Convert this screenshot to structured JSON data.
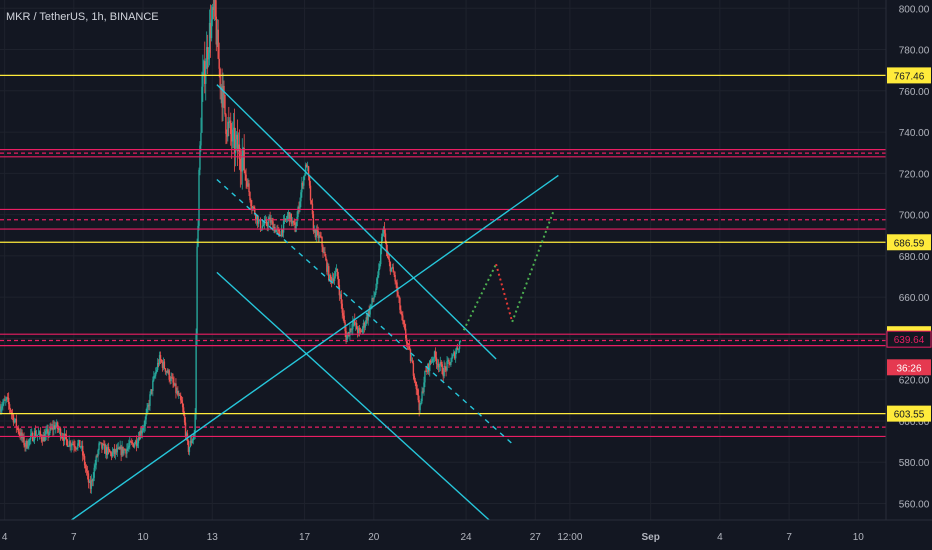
{
  "header": {
    "symbol": "MKR / TetherUS, 1h, BINANCE"
  },
  "colors": {
    "background": "#131722",
    "axis_text": "#b2b5be",
    "yellow_level": "#ffeb3b",
    "red_level": "#e91e63",
    "trendline": "#26c6da",
    "projection_up": "#4caf50",
    "projection_down": "#e53935",
    "candle_up": "#26a69a",
    "candle_down": "#ef5350",
    "countdown_bg": "#e53950"
  },
  "chart_data": {
    "type": "candlestick",
    "title": "MKR / TetherUS, 1h, BINANCE",
    "x_axis": {
      "tick_labels": [
        "4",
        "7",
        "10",
        "13",
        "17",
        "20",
        "24",
        "27",
        "12:00",
        "Sep",
        "4",
        "7",
        "10"
      ],
      "tick_values_day_index": [
        4,
        7,
        10,
        13,
        17,
        20,
        24,
        27,
        28.5,
        32,
        35,
        38,
        41
      ],
      "range_day_index": [
        3.8,
        42.2
      ]
    },
    "y_axis": {
      "tick_labels": [
        "560.00",
        "580.00",
        "600.00",
        "620.00",
        "640.00",
        "660.00",
        "680.00",
        "700.00",
        "720.00",
        "740.00",
        "760.00",
        "780.00",
        "800.00"
      ],
      "tick_values": [
        560,
        580,
        600,
        620,
        640,
        660,
        680,
        700,
        720,
        740,
        760,
        780,
        800
      ],
      "range": [
        552,
        804
      ],
      "position": "right"
    },
    "price_labels": [
      {
        "value": 767.46,
        "label": "767.46",
        "style": "yellow"
      },
      {
        "value": 686.59,
        "label": "686.59",
        "style": "yellow"
      },
      {
        "value": 642.04,
        "label": "642.04",
        "style": "yellow"
      },
      {
        "value": 639.64,
        "label": "639.64",
        "style": "red"
      },
      {
        "value": 603.55,
        "label": "603.55",
        "style": "yellow"
      }
    ],
    "countdown": {
      "label": "36:26",
      "value": 626
    },
    "horizontal_levels": [
      {
        "price": 767.46,
        "color": "yellow",
        "style": "solid"
      },
      {
        "price": 731.5,
        "color": "red",
        "style": "solid"
      },
      {
        "price": 729.8,
        "color": "red",
        "style": "dashed"
      },
      {
        "price": 728.0,
        "color": "red",
        "style": "solid"
      },
      {
        "price": 702.5,
        "color": "red",
        "style": "solid"
      },
      {
        "price": 697.5,
        "color": "red",
        "style": "dashed"
      },
      {
        "price": 693.0,
        "color": "red",
        "style": "solid"
      },
      {
        "price": 686.59,
        "color": "yellow",
        "style": "solid"
      },
      {
        "price": 642.04,
        "color": "red",
        "style": "solid"
      },
      {
        "price": 639.0,
        "color": "red",
        "style": "dashed"
      },
      {
        "price": 636.5,
        "color": "red",
        "style": "solid"
      },
      {
        "price": 603.55,
        "color": "yellow",
        "style": "solid"
      },
      {
        "price": 597.0,
        "color": "red",
        "style": "dashed"
      },
      {
        "price": 592.5,
        "color": "red",
        "style": "solid"
      }
    ],
    "trendlines": [
      {
        "name": "upper-channel",
        "from": [
          13.2,
          763
        ],
        "to": [
          25.3,
          630
        ],
        "style": "solid"
      },
      {
        "name": "channel-mid",
        "from": [
          13.2,
          717
        ],
        "to": [
          26.1,
          588
        ],
        "style": "dashed"
      },
      {
        "name": "lower-channel",
        "from": [
          13.2,
          672
        ],
        "to": [
          25.0,
          552
        ],
        "style": "solid"
      },
      {
        "name": "rising-support",
        "from": [
          6.9,
          552
        ],
        "to": [
          28.0,
          719
        ],
        "style": "solid"
      }
    ],
    "projections": [
      {
        "color": "green",
        "points": [
          [
            23.9,
            644
          ],
          [
            25.3,
            676
          ]
        ]
      },
      {
        "color": "red",
        "points": [
          [
            25.3,
            676
          ],
          [
            26.0,
            648
          ]
        ]
      },
      {
        "color": "green",
        "points": [
          [
            26.0,
            648
          ],
          [
            27.8,
            702
          ]
        ]
      }
    ],
    "candles": {
      "start_day_index": 3.8,
      "hours_per_candle": 1,
      "closes_hourly_anchor": [
        [
          3.8,
          607
        ],
        [
          4.1,
          610
        ],
        [
          4.5,
          598
        ],
        [
          4.9,
          588
        ],
        [
          5.3,
          594
        ],
        [
          5.7,
          592
        ],
        [
          6.2,
          598
        ],
        [
          6.7,
          590
        ],
        [
          7.3,
          588
        ],
        [
          7.7,
          567
        ],
        [
          8.1,
          588
        ],
        [
          8.6,
          584
        ],
        [
          9.2,
          586
        ],
        [
          9.7,
          590
        ],
        [
          10.1,
          600
        ],
        [
          10.4,
          617
        ],
        [
          10.7,
          630
        ],
        [
          11.0,
          625
        ],
        [
          11.3,
          618
        ],
        [
          11.7,
          607
        ],
        [
          11.95,
          586
        ],
        [
          12.25,
          595
        ],
        [
          12.35,
          690
        ],
        [
          12.55,
          760
        ],
        [
          12.9,
          790
        ],
        [
          13.1,
          798
        ],
        [
          13.3,
          770
        ],
        [
          13.6,
          745
        ],
        [
          13.9,
          735
        ],
        [
          14.3,
          728
        ],
        [
          14.7,
          705
        ],
        [
          15.1,
          694
        ],
        [
          15.5,
          697
        ],
        [
          15.9,
          690
        ],
        [
          16.3,
          700
        ],
        [
          16.6,
          693
        ],
        [
          16.9,
          715
        ],
        [
          17.1,
          725
        ],
        [
          17.4,
          692
        ],
        [
          17.7,
          688
        ],
        [
          18.1,
          668
        ],
        [
          18.4,
          672
        ],
        [
          18.8,
          640
        ],
        [
          19.1,
          648
        ],
        [
          19.4,
          642
        ],
        [
          19.7,
          650
        ],
        [
          20.0,
          660
        ],
        [
          20.2,
          670
        ],
        [
          20.4,
          695
        ],
        [
          20.6,
          678
        ],
        [
          20.9,
          670
        ],
        [
          21.2,
          650
        ],
        [
          21.5,
          635
        ],
        [
          21.8,
          620
        ],
        [
          22.0,
          605
        ],
        [
          22.2,
          622
        ],
        [
          22.6,
          632
        ],
        [
          23.0,
          624
        ],
        [
          23.4,
          630
        ],
        [
          23.6,
          635
        ],
        [
          23.8,
          640
        ]
      ]
    }
  }
}
